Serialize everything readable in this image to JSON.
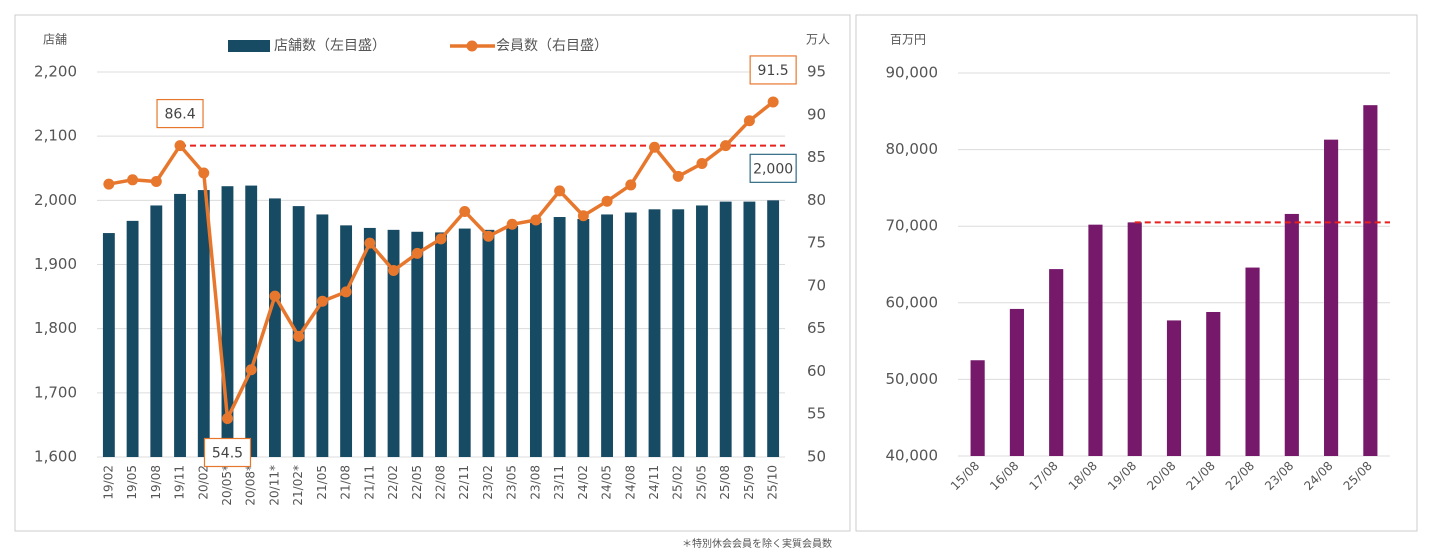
{
  "chart_data": [
    {
      "type": "combo",
      "y_label": "店舗",
      "y2_label": "万人",
      "categories": [
        "19/02",
        "19/05",
        "19/08",
        "19/11",
        "20/02",
        "20/05*",
        "20/08*",
        "20/11*",
        "21/02*",
        "21/05",
        "21/08",
        "21/11",
        "22/02",
        "22/05",
        "22/08",
        "22/11",
        "23/02",
        "23/05",
        "23/08",
        "23/11",
        "24/02",
        "24/05",
        "24/08",
        "24/11",
        "25/02",
        "25/05",
        "25/08",
        "25/09",
        "25/10"
      ],
      "series": [
        {
          "name": "店舗数（左目盛）",
          "type": "bar",
          "color": "#174a63",
          "values": [
            1949,
            1968,
            1992,
            2010,
            2016,
            2022,
            2023,
            2003,
            1991,
            1978,
            1961,
            1957,
            1954,
            1951,
            1950,
            1956,
            1954,
            1960,
            1965,
            1974,
            1971,
            1978,
            1981,
            1986,
            1986,
            1992,
            1998,
            1998,
            2000
          ],
          "value_labels": [
            null,
            null,
            null,
            null,
            null,
            null,
            null,
            null,
            null,
            null,
            null,
            null,
            null,
            null,
            null,
            null,
            null,
            null,
            null,
            null,
            null,
            null,
            null,
            null,
            null,
            null,
            null,
            null,
            "2,000"
          ]
        },
        {
          "name": "会員数（右目盛）",
          "type": "line",
          "axis": "y2",
          "color": "#e8772e",
          "values": [
            81.9,
            82.4,
            82.2,
            86.4,
            83.2,
            54.5,
            60.2,
            68.8,
            64.1,
            68.2,
            69.3,
            75.0,
            71.8,
            73.8,
            75.5,
            78.7,
            75.8,
            77.2,
            77.7,
            81.1,
            78.2,
            79.9,
            81.8,
            86.2,
            82.8,
            84.3,
            86.4,
            89.3,
            91.5
          ],
          "value_labels": [
            null,
            null,
            null,
            "86.4",
            null,
            "54.5",
            null,
            null,
            null,
            null,
            null,
            null,
            null,
            null,
            null,
            null,
            null,
            null,
            null,
            null,
            null,
            null,
            null,
            null,
            null,
            null,
            null,
            null,
            "91.5"
          ]
        }
      ],
      "ylim": [
        1600,
        2200
      ],
      "yticks": [
        {
          "value": 1600,
          "label": "1,600"
        },
        {
          "value": 1700,
          "label": "1,700"
        },
        {
          "value": 1800,
          "label": "1,800"
        },
        {
          "value": 1900,
          "label": "1,900"
        },
        {
          "value": 2000,
          "label": "2,000"
        },
        {
          "value": 2100,
          "label": "2,100"
        },
        {
          "value": 2200,
          "label": "2,200"
        }
      ],
      "y2lim": [
        50,
        95
      ],
      "y2ticks": [
        50,
        55,
        60,
        65,
        70,
        75,
        80,
        85,
        90,
        95
      ],
      "grid": true,
      "reference_line": {
        "value": 86.4,
        "axis": "y2",
        "start": "19/11",
        "color": "#e8201e"
      },
      "footnote": "＊特別休会会員を除く実質会員数"
    },
    {
      "type": "bar",
      "y_label": "百万円",
      "categories": [
        "15/08",
        "16/08",
        "17/08",
        "18/08",
        "19/08",
        "20/08",
        "21/08",
        "22/08",
        "23/08",
        "24/08",
        "25/08"
      ],
      "values": [
        52500,
        59200,
        64400,
        70200,
        70500,
        57700,
        58800,
        64600,
        71600,
        81300,
        85800
      ],
      "color": "#76196b",
      "ylim": [
        40000,
        90000
      ],
      "yticks": [
        {
          "value": 40000,
          "label": "40,000"
        },
        {
          "value": 50000,
          "label": "50,000"
        },
        {
          "value": 60000,
          "label": "60,000"
        },
        {
          "value": 70000,
          "label": "70,000"
        },
        {
          "value": 80000,
          "label": "80,000"
        },
        {
          "value": 90000,
          "label": "90,000"
        }
      ],
      "grid": true,
      "reference_line": {
        "value": 70500,
        "start": "19/08",
        "color": "#e8201e"
      }
    }
  ]
}
